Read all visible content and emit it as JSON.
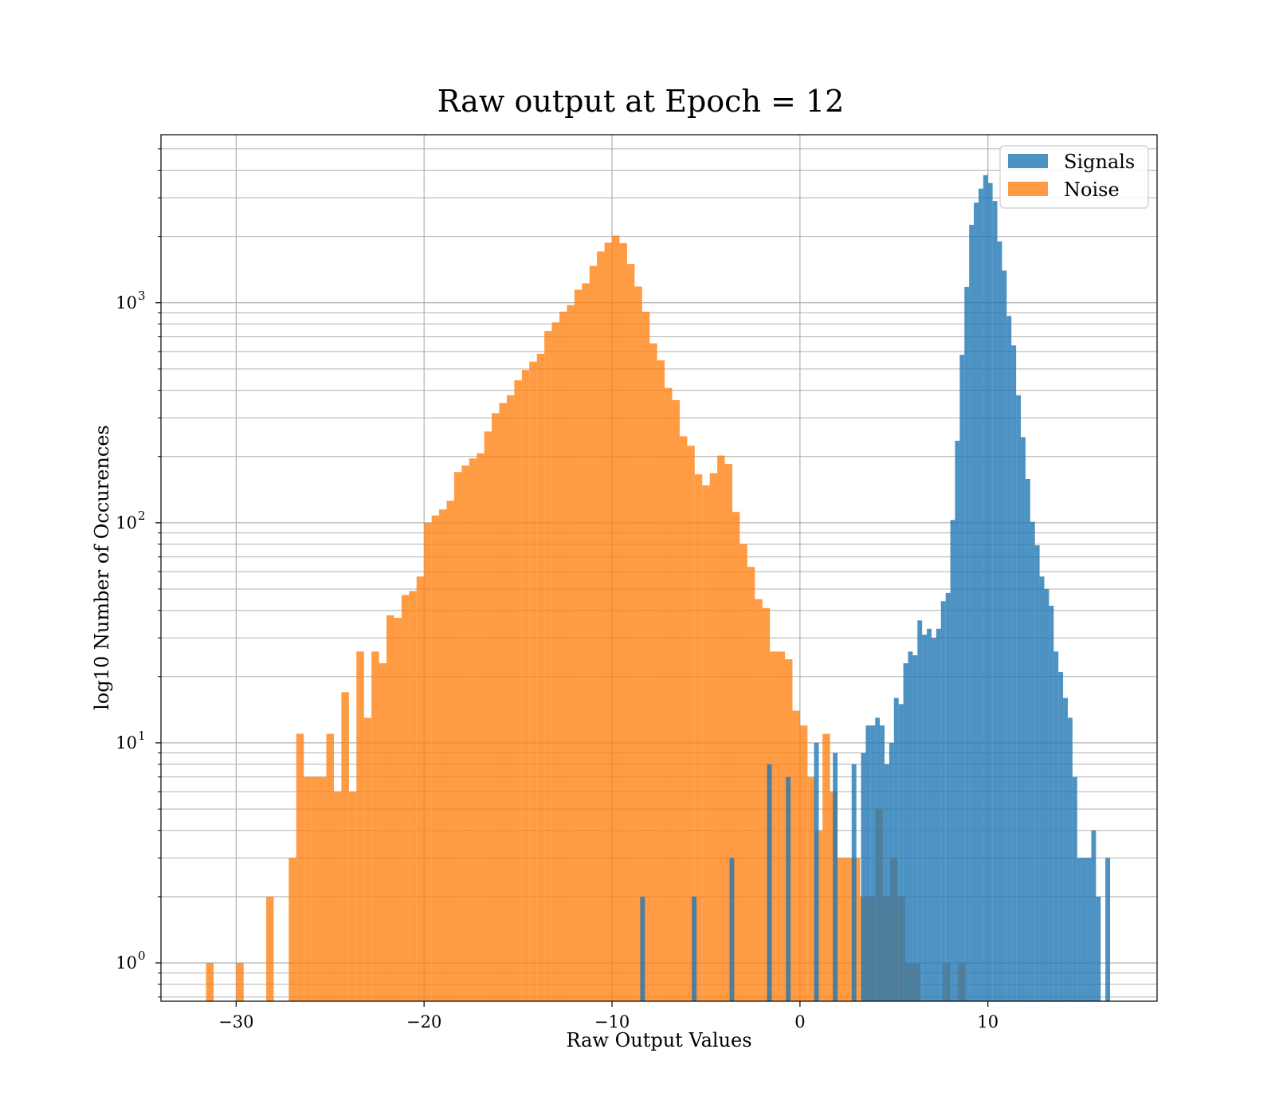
{
  "chart_data": {
    "type": "bar",
    "title": "Raw output at Epoch = 12",
    "xlabel": "Raw Output Values",
    "ylabel": "log10 Number of Occurences",
    "xlim": [
      -34,
      19
    ],
    "ylim": [
      0.67,
      5800
    ],
    "yscale": "log",
    "grid": true,
    "legend_position": "top-right",
    "x_ticks": [
      {
        "value": -30,
        "label": "−30"
      },
      {
        "value": -20,
        "label": "−20"
      },
      {
        "value": -10,
        "label": "−10"
      },
      {
        "value": 0,
        "label": "0"
      },
      {
        "value": 10,
        "label": "10"
      }
    ],
    "y_ticks": [
      {
        "value": 1,
        "base": "10",
        "exp": "0"
      },
      {
        "value": 10,
        "base": "10",
        "exp": "1"
      },
      {
        "value": 100,
        "base": "10",
        "exp": "2"
      },
      {
        "value": 1000,
        "base": "10",
        "exp": "3"
      }
    ],
    "series": [
      {
        "name": "Noise",
        "color": "#ff7f0e",
        "opacity": 0.78,
        "bin_width": 0.4,
        "bins": [
          [
            -31.6,
            1
          ],
          [
            -30.0,
            1
          ],
          [
            -28.4,
            2
          ],
          [
            -27.2,
            3
          ],
          [
            -26.8,
            11
          ],
          [
            -26.4,
            7
          ],
          [
            -26.0,
            7
          ],
          [
            -25.6,
            7
          ],
          [
            -25.2,
            11
          ],
          [
            -24.8,
            6
          ],
          [
            -24.4,
            17
          ],
          [
            -24.0,
            6
          ],
          [
            -23.6,
            26
          ],
          [
            -23.2,
            13
          ],
          [
            -22.8,
            26
          ],
          [
            -22.4,
            23
          ],
          [
            -22.0,
            38
          ],
          [
            -21.6,
            37
          ],
          [
            -21.2,
            47
          ],
          [
            -20.8,
            49
          ],
          [
            -20.4,
            57
          ],
          [
            -20.0,
            100
          ],
          [
            -19.6,
            108
          ],
          [
            -19.2,
            115
          ],
          [
            -18.8,
            126
          ],
          [
            -18.4,
            170
          ],
          [
            -18.0,
            182
          ],
          [
            -17.6,
            196
          ],
          [
            -17.2,
            207
          ],
          [
            -16.8,
            260
          ],
          [
            -16.4,
            315
          ],
          [
            -16.0,
            350
          ],
          [
            -15.6,
            380
          ],
          [
            -15.2,
            444
          ],
          [
            -14.8,
            495
          ],
          [
            -14.4,
            540
          ],
          [
            -14.0,
            586
          ],
          [
            -13.6,
            744
          ],
          [
            -13.2,
            814
          ],
          [
            -12.8,
            910
          ],
          [
            -12.4,
            975
          ],
          [
            -12.0,
            1145
          ],
          [
            -11.6,
            1225
          ],
          [
            -11.2,
            1470
          ],
          [
            -10.8,
            1710
          ],
          [
            -10.4,
            1875
          ],
          [
            -10.0,
            2020
          ],
          [
            -9.6,
            1865
          ],
          [
            -9.2,
            1500
          ],
          [
            -8.8,
            1185
          ],
          [
            -8.4,
            910
          ],
          [
            -8.0,
            654
          ],
          [
            -7.6,
            547
          ],
          [
            -7.2,
            410
          ],
          [
            -6.8,
            361
          ],
          [
            -6.4,
            247
          ],
          [
            -6.0,
            224
          ],
          [
            -5.6,
            166
          ],
          [
            -5.2,
            148
          ],
          [
            -4.8,
            168
          ],
          [
            -4.4,
            202
          ],
          [
            -4.0,
            185
          ],
          [
            -3.6,
            112
          ],
          [
            -3.2,
            80
          ],
          [
            -2.8,
            63
          ],
          [
            -2.4,
            45
          ],
          [
            -2.0,
            41
          ],
          [
            -1.6,
            26
          ],
          [
            -1.2,
            26
          ],
          [
            -0.8,
            24
          ],
          [
            -0.4,
            14
          ],
          [
            0.0,
            12
          ],
          [
            0.4,
            7
          ],
          [
            0.8,
            4
          ],
          [
            1.2,
            11
          ],
          [
            1.6,
            6
          ],
          [
            2.0,
            3
          ],
          [
            2.4,
            3
          ],
          [
            2.8,
            3
          ],
          [
            3.2,
            2
          ],
          [
            3.6,
            2
          ],
          [
            4.0,
            5
          ],
          [
            4.4,
            2
          ],
          [
            4.8,
            3
          ],
          [
            5.2,
            2
          ],
          [
            5.6,
            1
          ],
          [
            6.0,
            1
          ],
          [
            7.6,
            1
          ],
          [
            8.4,
            1
          ]
        ]
      },
      {
        "name": "Signals",
        "color": "#1f77b4",
        "opacity": 0.8,
        "bin_width": 0.25,
        "bins": [
          [
            -8.5,
            2
          ],
          [
            -5.75,
            2
          ],
          [
            -3.75,
            3
          ],
          [
            -1.75,
            8
          ],
          [
            -0.75,
            7
          ],
          [
            0.75,
            10
          ],
          [
            1.75,
            9
          ],
          [
            2.75,
            8
          ],
          [
            3.25,
            9
          ],
          [
            3.5,
            12
          ],
          [
            3.75,
            12
          ],
          [
            4.0,
            13
          ],
          [
            4.25,
            12
          ],
          [
            4.5,
            8
          ],
          [
            4.75,
            10
          ],
          [
            5.0,
            16
          ],
          [
            5.25,
            15
          ],
          [
            5.5,
            23
          ],
          [
            5.75,
            26
          ],
          [
            6.0,
            25
          ],
          [
            6.25,
            36
          ],
          [
            6.5,
            31
          ],
          [
            6.75,
            33
          ],
          [
            7.0,
            30
          ],
          [
            7.25,
            33
          ],
          [
            7.5,
            44
          ],
          [
            7.75,
            48
          ],
          [
            8.0,
            103
          ],
          [
            8.25,
            236
          ],
          [
            8.5,
            580
          ],
          [
            8.75,
            1180
          ],
          [
            9.0,
            2260
          ],
          [
            9.25,
            2850
          ],
          [
            9.5,
            3300
          ],
          [
            9.75,
            3800
          ],
          [
            10.0,
            3500
          ],
          [
            10.25,
            2900
          ],
          [
            10.5,
            1900
          ],
          [
            10.75,
            1400
          ],
          [
            11.0,
            870
          ],
          [
            11.25,
            640
          ],
          [
            11.5,
            380
          ],
          [
            11.75,
            245
          ],
          [
            12.0,
            158
          ],
          [
            12.25,
            101
          ],
          [
            12.5,
            79
          ],
          [
            12.75,
            57
          ],
          [
            13.0,
            50
          ],
          [
            13.25,
            42
          ],
          [
            13.5,
            26
          ],
          [
            13.75,
            21
          ],
          [
            14.0,
            16
          ],
          [
            14.25,
            13
          ],
          [
            14.5,
            7
          ],
          [
            14.75,
            3
          ],
          [
            15.0,
            3
          ],
          [
            15.25,
            3
          ],
          [
            15.5,
            4
          ],
          [
            15.75,
            2
          ],
          [
            16.25,
            3
          ]
        ]
      }
    ]
  }
}
